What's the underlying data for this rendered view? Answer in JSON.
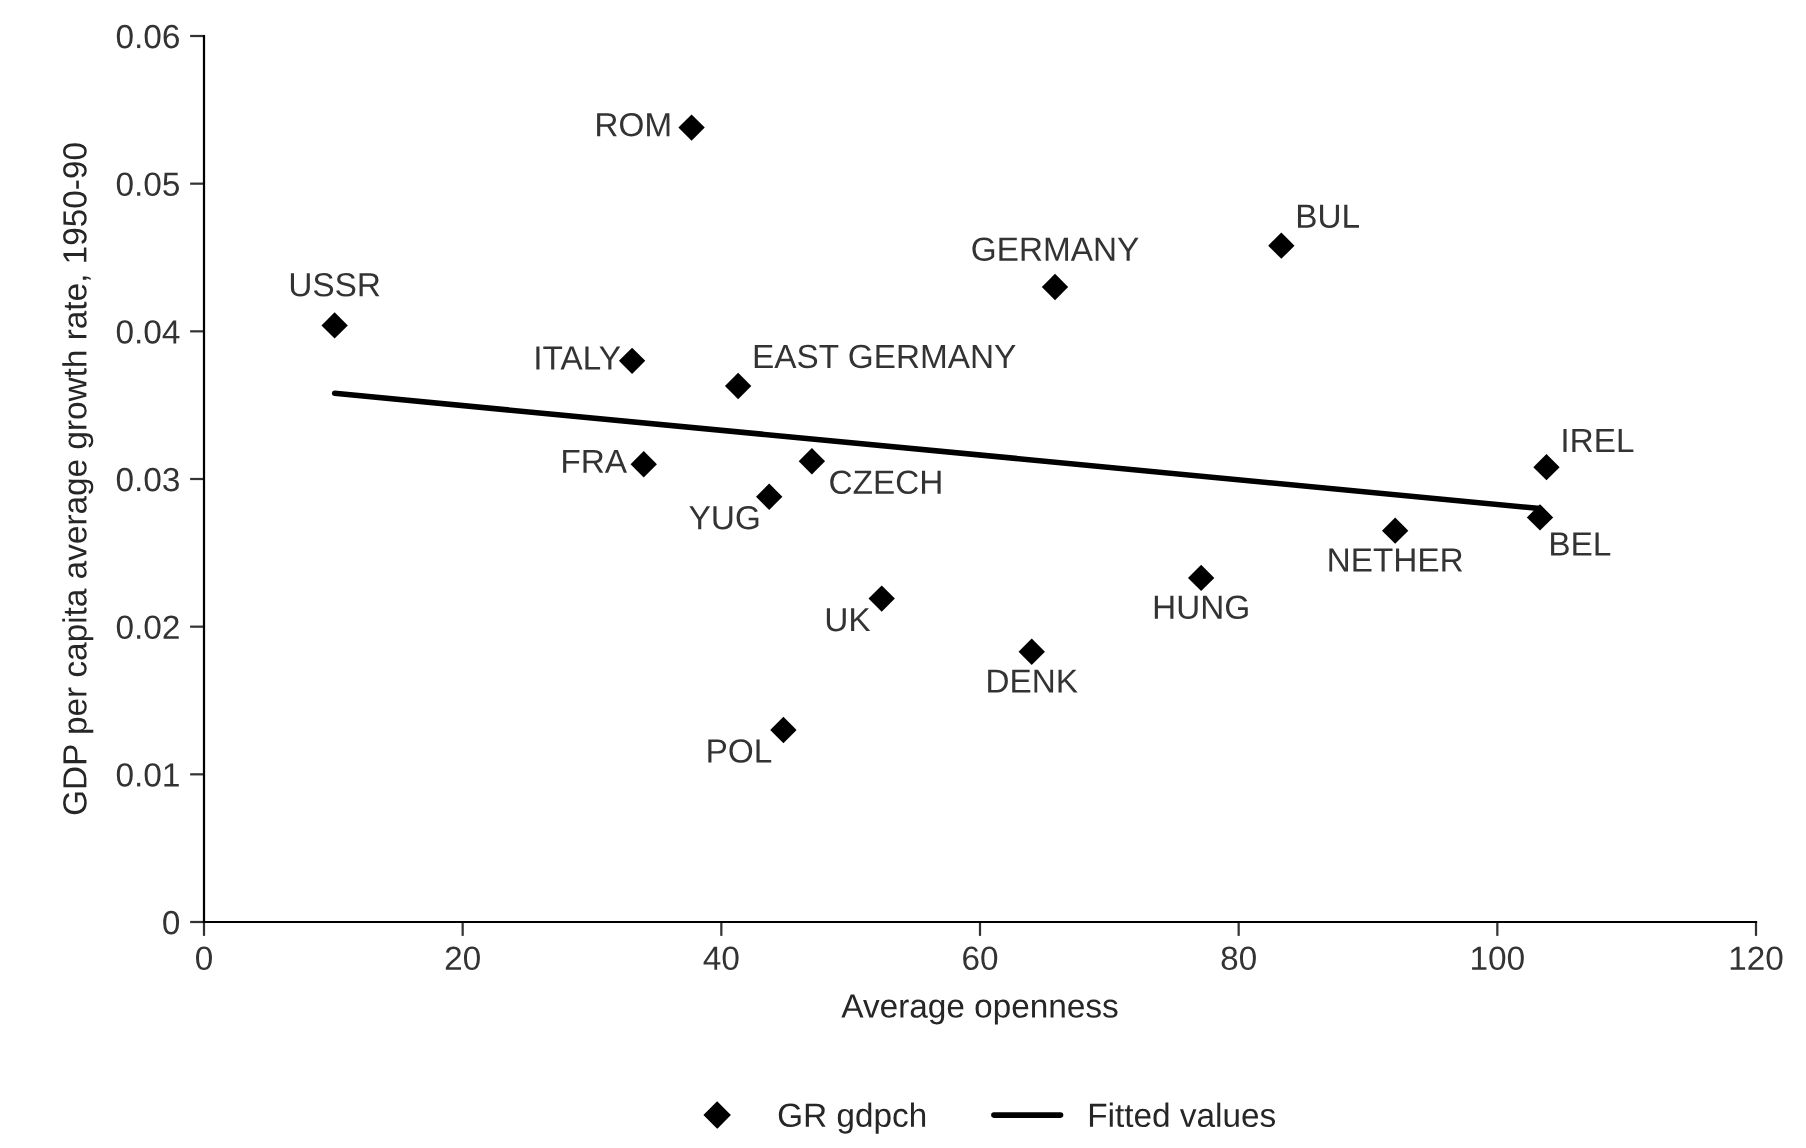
{
  "chart_data": {
    "type": "scatter",
    "xlabel": "Average openness",
    "ylabel": "GDP per capita average growth rate, 1950-90",
    "xlim": [
      0,
      120
    ],
    "xticks": [
      0,
      20,
      40,
      60,
      80,
      100,
      120
    ],
    "ylim": [
      0,
      0.06
    ],
    "yticks": [
      0,
      0.01,
      0.02,
      0.03,
      0.04,
      0.05,
      0.06
    ],
    "grid": false,
    "legend": "bottom",
    "marker": "diamond",
    "series": [
      {
        "name": "GR gdpch",
        "color": "#000000",
        "x": [
          37.7,
          10.1,
          33.1,
          41.3,
          34.0,
          43.7,
          47.0,
          52.4,
          44.8,
          65.8,
          83.3,
          103.8,
          103.3,
          92.1,
          77.1,
          64.0
        ],
        "values": [
          0.0538,
          0.0404,
          0.038,
          0.0363,
          0.031,
          0.0288,
          0.0312,
          0.0219,
          0.013,
          0.043,
          0.0458,
          0.0308,
          0.0274,
          0.0265,
          0.0233,
          0.0183
        ]
      },
      {
        "name": "Fitted values",
        "type": "line",
        "color": "#000000",
        "marker": "none",
        "line_style": "solid",
        "x": [
          10.1,
          103.3
        ],
        "values": [
          0.0358,
          0.028
        ]
      }
    ],
    "annotations": [
      {
        "text": "ROM",
        "x": 37.7,
        "y": 0.0538
      },
      {
        "text": "USSR",
        "x": 10.1,
        "y": 0.0404
      },
      {
        "text": "ITALY",
        "x": 33.1,
        "y": 0.038
      },
      {
        "text": "EAST GERMANY",
        "x": 41.3,
        "y": 0.0363
      },
      {
        "text": "FRA",
        "x": 34.0,
        "y": 0.031
      },
      {
        "text": "YUG",
        "x": 43.7,
        "y": 0.0288
      },
      {
        "text": "CZECH",
        "x": 47.0,
        "y": 0.0312
      },
      {
        "text": "UK",
        "x": 52.4,
        "y": 0.0219
      },
      {
        "text": "POL",
        "x": 44.8,
        "y": 0.013
      },
      {
        "text": "GERMANY",
        "x": 65.8,
        "y": 0.043
      },
      {
        "text": "BUL",
        "x": 83.3,
        "y": 0.0458
      },
      {
        "text": "IREL",
        "x": 103.8,
        "y": 0.0308
      },
      {
        "text": "BEL",
        "x": 103.3,
        "y": 0.0274
      },
      {
        "text": "NETHER",
        "x": 92.1,
        "y": 0.0265
      },
      {
        "text": "HUNG",
        "x": 77.1,
        "y": 0.0233
      },
      {
        "text": "DENK",
        "x": 64.0,
        "y": 0.0183
      }
    ]
  }
}
